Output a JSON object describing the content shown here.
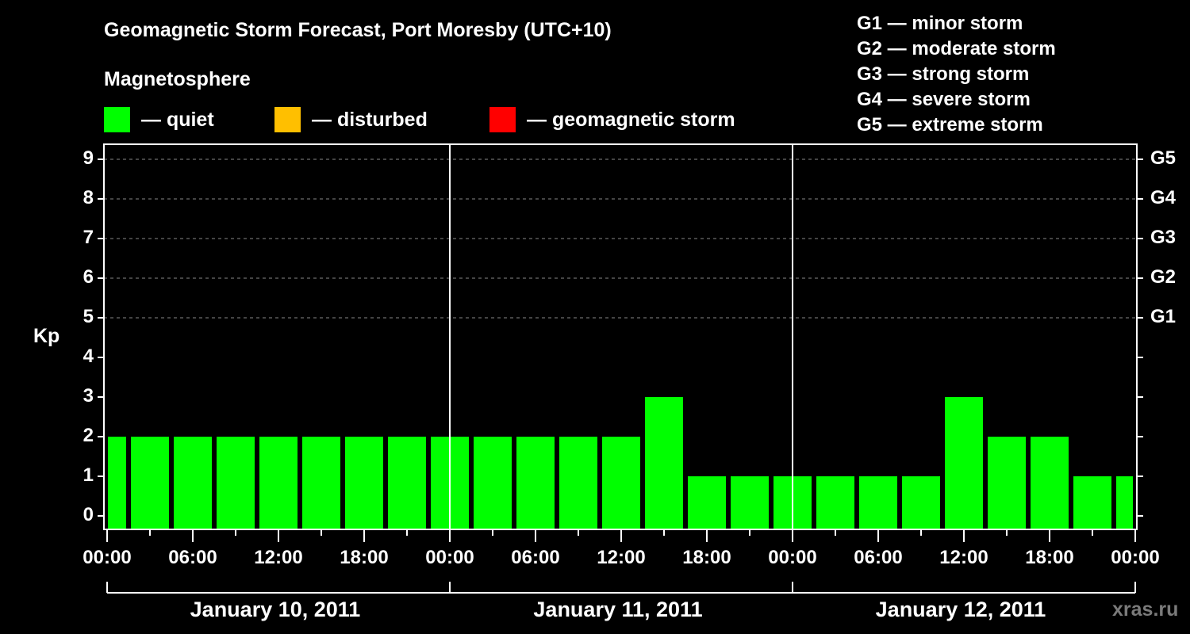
{
  "header": {
    "title": "Geomagnetic Storm Forecast, Port Moresby (UTC+10)",
    "subtitle": "Magnetosphere"
  },
  "legend": [
    {
      "label": "— quiet",
      "color": "#00ff00"
    },
    {
      "label": "— disturbed",
      "color": "#ffbf00"
    },
    {
      "label": "— geomagnetic storm",
      "color": "#ff0000"
    }
  ],
  "g_scale": [
    "G1 — minor storm",
    "G2 — moderate storm",
    "G3 — strong storm",
    "G4 — severe storm",
    "G5 — extreme storm"
  ],
  "watermark": "xras.ru",
  "chart_data": {
    "type": "bar",
    "title": "Geomagnetic Storm Forecast, Port Moresby (UTC+10)",
    "xlabel": "",
    "ylabel": "Kp",
    "ylim": [
      0,
      9
    ],
    "yticks": [
      "0",
      "1",
      "2",
      "3",
      "4",
      "5",
      "6",
      "7",
      "8",
      "9"
    ],
    "right_ticks": [
      {
        "kp": 5,
        "label": "G1"
      },
      {
        "kp": 6,
        "label": "G2"
      },
      {
        "kp": 7,
        "label": "G3"
      },
      {
        "kp": 8,
        "label": "G4"
      },
      {
        "kp": 9,
        "label": "G5"
      }
    ],
    "xticks": [
      "00:00",
      "06:00",
      "12:00",
      "18:00",
      "00:00",
      "06:00",
      "12:00",
      "18:00",
      "00:00",
      "06:00",
      "12:00",
      "18:00",
      "00:00"
    ],
    "days": [
      "January 10, 2011",
      "January 11, 2011",
      "January 12, 2011"
    ],
    "grid": "dashed horizontal at Kp 5-9",
    "bar_interval_hours": 3,
    "categories": [
      "Jan10 00:00",
      "Jan10 03:00",
      "Jan10 06:00",
      "Jan10 09:00",
      "Jan10 12:00",
      "Jan10 15:00",
      "Jan10 18:00",
      "Jan10 21:00",
      "Jan11 00:00",
      "Jan11 03:00",
      "Jan11 06:00",
      "Jan11 09:00",
      "Jan11 12:00",
      "Jan11 15:00",
      "Jan11 18:00",
      "Jan11 21:00",
      "Jan12 00:00",
      "Jan12 03:00",
      "Jan12 06:00",
      "Jan12 09:00",
      "Jan12 12:00",
      "Jan12 15:00",
      "Jan12 18:00",
      "Jan12 21:00",
      "Jan13 00:00"
    ],
    "values": [
      2,
      2,
      2,
      2,
      2,
      2,
      2,
      2,
      2,
      2,
      2,
      2,
      2,
      3,
      1,
      1,
      1,
      1,
      1,
      1,
      3,
      2,
      2,
      1,
      1
    ],
    "status": "quiet",
    "bar_color": "#00ff00"
  }
}
